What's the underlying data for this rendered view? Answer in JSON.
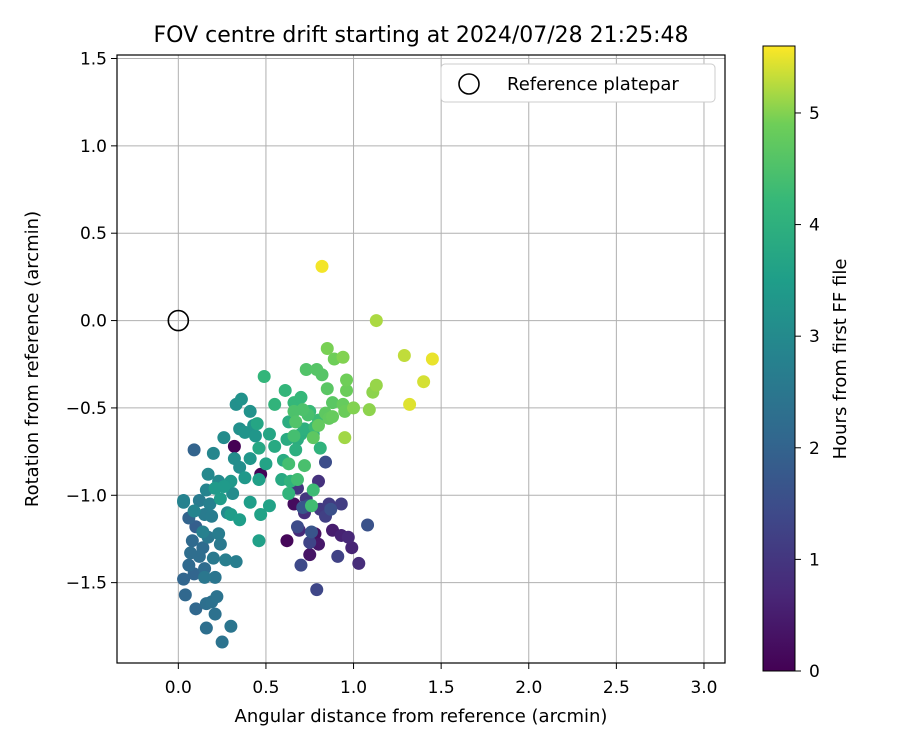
{
  "chart_data": {
    "type": "scatter",
    "title": "FOV centre drift starting at 2024/07/28 21:25:48",
    "xlabel": "Angular distance from reference (arcmin)",
    "ylabel": "Rotation from reference (arcmin)",
    "xlim": [
      -0.35,
      3.12
    ],
    "ylim": [
      -1.96,
      1.52
    ],
    "xticks": [
      0.0,
      0.5,
      1.0,
      1.5,
      2.0,
      2.5,
      3.0
    ],
    "xtick_labels": [
      "0.0",
      "0.5",
      "1.0",
      "1.5",
      "2.0",
      "2.5",
      "3.0"
    ],
    "yticks": [
      -1.5,
      -1.0,
      -0.5,
      0.0,
      0.5,
      1.0,
      1.5
    ],
    "ytick_labels": [
      "−1.5",
      "−1.0",
      "−0.5",
      "0.0",
      "0.5",
      "1.0",
      "1.5"
    ],
    "grid": true,
    "colormap": "viridis",
    "colorbar": {
      "label": "Hours from first FF file",
      "range": [
        0,
        5.6
      ],
      "ticks": [
        0,
        1,
        2,
        3,
        4,
        5
      ],
      "tick_labels": [
        "0",
        "1",
        "2",
        "3",
        "4",
        "5"
      ]
    },
    "legend": {
      "placement": "top-right",
      "entries": [
        {
          "label": "Reference platepar",
          "marker": "open-circle",
          "color": "#000000"
        }
      ]
    },
    "reference_point": {
      "name": "Reference platepar",
      "x": 0.0,
      "y": 0.0
    },
    "points": [
      {
        "x": 0.32,
        "y": -0.72,
        "c": 0.0
      },
      {
        "x": 0.47,
        "y": -0.88,
        "c": 0.05
      },
      {
        "x": 0.62,
        "y": -1.26,
        "c": 0.1
      },
      {
        "x": 0.66,
        "y": -1.05,
        "c": 0.2
      },
      {
        "x": 0.78,
        "y": -1.22,
        "c": 0.3
      },
      {
        "x": 0.75,
        "y": -1.34,
        "c": 0.35
      },
      {
        "x": 0.8,
        "y": -1.28,
        "c": 0.4
      },
      {
        "x": 0.88,
        "y": -1.2,
        "c": 0.5
      },
      {
        "x": 0.93,
        "y": -1.23,
        "c": 0.6
      },
      {
        "x": 0.99,
        "y": -1.3,
        "c": 0.65
      },
      {
        "x": 0.97,
        "y": -1.24,
        "c": 0.7
      },
      {
        "x": 1.03,
        "y": -1.39,
        "c": 0.8
      },
      {
        "x": 0.69,
        "y": -1.2,
        "c": 0.75
      },
      {
        "x": 0.72,
        "y": -1.1,
        "c": 0.85
      },
      {
        "x": 0.8,
        "y": -0.92,
        "c": 0.9
      },
      {
        "x": 0.68,
        "y": -0.96,
        "c": 0.95
      },
      {
        "x": 0.73,
        "y": -1.02,
        "c": 1.0
      },
      {
        "x": 0.81,
        "y": -1.08,
        "c": 1.05
      },
      {
        "x": 0.86,
        "y": -1.05,
        "c": 1.1
      },
      {
        "x": 0.93,
        "y": -1.05,
        "c": 1.15
      },
      {
        "x": 0.84,
        "y": -1.12,
        "c": 1.2
      },
      {
        "x": 0.91,
        "y": -1.35,
        "c": 1.25
      },
      {
        "x": 0.75,
        "y": -1.27,
        "c": 1.3
      },
      {
        "x": 0.79,
        "y": -1.54,
        "c": 1.35
      },
      {
        "x": 0.7,
        "y": -1.4,
        "c": 1.4
      },
      {
        "x": 0.68,
        "y": -1.18,
        "c": 1.45
      },
      {
        "x": 0.74,
        "y": -1.06,
        "c": 1.5
      },
      {
        "x": 0.84,
        "y": -0.81,
        "c": 1.5
      },
      {
        "x": 0.87,
        "y": -1.08,
        "c": 1.55
      },
      {
        "x": 1.08,
        "y": -1.17,
        "c": 1.6
      },
      {
        "x": 0.76,
        "y": -1.21,
        "c": 1.65
      },
      {
        "x": 0.71,
        "y": -1.07,
        "c": 1.7
      },
      {
        "x": 0.1,
        "y": -1.18,
        "c": 1.9
      },
      {
        "x": 0.09,
        "y": -0.74,
        "c": 2.0
      },
      {
        "x": 0.06,
        "y": -1.13,
        "c": 2.0
      },
      {
        "x": 0.09,
        "y": -1.45,
        "c": 2.05
      },
      {
        "x": 0.03,
        "y": -1.48,
        "c": 2.05
      },
      {
        "x": 0.04,
        "y": -1.57,
        "c": 2.1
      },
      {
        "x": 0.1,
        "y": -1.65,
        "c": 2.1
      },
      {
        "x": 0.06,
        "y": -1.4,
        "c": 2.15
      },
      {
        "x": 0.08,
        "y": -1.26,
        "c": 2.15
      },
      {
        "x": 0.14,
        "y": -1.3,
        "c": 2.2
      },
      {
        "x": 0.15,
        "y": -1.42,
        "c": 2.2
      },
      {
        "x": 0.12,
        "y": -1.35,
        "c": 2.25
      },
      {
        "x": 0.07,
        "y": -1.33,
        "c": 2.25
      },
      {
        "x": 0.16,
        "y": -1.62,
        "c": 2.3
      },
      {
        "x": 0.16,
        "y": -1.76,
        "c": 2.3
      },
      {
        "x": 0.19,
        "y": -1.61,
        "c": 2.35
      },
      {
        "x": 0.21,
        "y": -1.68,
        "c": 2.35
      },
      {
        "x": 0.22,
        "y": -1.58,
        "c": 2.4
      },
      {
        "x": 0.25,
        "y": -1.84,
        "c": 2.4
      },
      {
        "x": 0.3,
        "y": -1.75,
        "c": 2.45
      },
      {
        "x": 0.21,
        "y": -1.47,
        "c": 2.45
      },
      {
        "x": 0.15,
        "y": -1.47,
        "c": 2.5
      },
      {
        "x": 0.17,
        "y": -1.24,
        "c": 2.5
      },
      {
        "x": 0.2,
        "y": -1.36,
        "c": 2.55
      },
      {
        "x": 0.24,
        "y": -1.28,
        "c": 2.55
      },
      {
        "x": 0.12,
        "y": -1.03,
        "c": 2.6
      },
      {
        "x": 0.15,
        "y": -1.11,
        "c": 2.6
      },
      {
        "x": 0.19,
        "y": -1.12,
        "c": 2.65
      },
      {
        "x": 0.23,
        "y": -1.22,
        "c": 2.65
      },
      {
        "x": 0.27,
        "y": -1.37,
        "c": 2.7
      },
      {
        "x": 0.33,
        "y": -1.38,
        "c": 2.7
      },
      {
        "x": 0.18,
        "y": -1.05,
        "c": 2.75
      },
      {
        "x": 0.14,
        "y": -1.21,
        "c": 2.75
      },
      {
        "x": 0.03,
        "y": -1.04,
        "c": 2.8
      },
      {
        "x": 0.03,
        "y": -1.03,
        "c": 2.8
      },
      {
        "x": 0.09,
        "y": -1.09,
        "c": 2.85
      },
      {
        "x": 0.16,
        "y": -0.97,
        "c": 2.85
      },
      {
        "x": 0.2,
        "y": -0.76,
        "c": 2.9
      },
      {
        "x": 0.17,
        "y": -0.88,
        "c": 2.95
      },
      {
        "x": 0.23,
        "y": -0.92,
        "c": 3.0
      },
      {
        "x": 0.28,
        "y": -1.1,
        "c": 3.0
      },
      {
        "x": 0.31,
        "y": -0.99,
        "c": 3.05
      },
      {
        "x": 0.26,
        "y": -0.67,
        "c": 3.05
      },
      {
        "x": 0.32,
        "y": -0.79,
        "c": 3.1
      },
      {
        "x": 0.35,
        "y": -0.84,
        "c": 3.1
      },
      {
        "x": 0.35,
        "y": -0.62,
        "c": 3.15
      },
      {
        "x": 0.33,
        "y": -0.48,
        "c": 3.15
      },
      {
        "x": 0.36,
        "y": -0.45,
        "c": 3.2
      },
      {
        "x": 0.41,
        "y": -0.52,
        "c": 3.2
      },
      {
        "x": 0.38,
        "y": -0.64,
        "c": 3.25
      },
      {
        "x": 0.43,
        "y": -0.6,
        "c": 3.25
      },
      {
        "x": 0.44,
        "y": -0.66,
        "c": 3.3
      },
      {
        "x": 0.41,
        "y": -0.79,
        "c": 3.3
      },
      {
        "x": 0.38,
        "y": -0.9,
        "c": 3.35
      },
      {
        "x": 0.3,
        "y": -0.92,
        "c": 3.35
      },
      {
        "x": 0.26,
        "y": -0.95,
        "c": 3.4
      },
      {
        "x": 0.21,
        "y": -0.96,
        "c": 3.4
      },
      {
        "x": 0.24,
        "y": -1.02,
        "c": 3.45
      },
      {
        "x": 0.3,
        "y": -1.11,
        "c": 3.45
      },
      {
        "x": 0.35,
        "y": -1.14,
        "c": 3.5
      },
      {
        "x": 0.41,
        "y": -1.04,
        "c": 3.5
      },
      {
        "x": 0.46,
        "y": -1.26,
        "c": 3.55
      },
      {
        "x": 0.46,
        "y": -0.91,
        "c": 3.55
      },
      {
        "x": 0.47,
        "y": -1.11,
        "c": 3.6
      },
      {
        "x": 0.52,
        "y": -1.06,
        "c": 3.6
      },
      {
        "x": 0.5,
        "y": -0.82,
        "c": 3.65
      },
      {
        "x": 0.52,
        "y": -0.65,
        "c": 3.7
      },
      {
        "x": 0.45,
        "y": -0.59,
        "c": 3.7
      },
      {
        "x": 0.46,
        "y": -0.73,
        "c": 3.75
      },
      {
        "x": 0.55,
        "y": -0.72,
        "c": 3.8
      },
      {
        "x": 0.59,
        "y": -0.91,
        "c": 3.8
      },
      {
        "x": 0.6,
        "y": -0.8,
        "c": 3.85
      },
      {
        "x": 0.62,
        "y": -0.68,
        "c": 3.85
      },
      {
        "x": 0.63,
        "y": -0.58,
        "c": 3.9
      },
      {
        "x": 0.68,
        "y": -0.68,
        "c": 3.9
      },
      {
        "x": 0.7,
        "y": -0.65,
        "c": 3.95
      },
      {
        "x": 0.67,
        "y": -0.74,
        "c": 3.95
      },
      {
        "x": 0.72,
        "y": -0.62,
        "c": 4.0
      },
      {
        "x": 0.77,
        "y": -0.65,
        "c": 4.0
      },
      {
        "x": 0.81,
        "y": -0.73,
        "c": 4.05
      },
      {
        "x": 0.64,
        "y": -0.92,
        "c": 4.05
      },
      {
        "x": 0.63,
        "y": -0.99,
        "c": 4.1
      },
      {
        "x": 0.55,
        "y": -0.48,
        "c": 4.1
      },
      {
        "x": 0.61,
        "y": -0.4,
        "c": 4.15
      },
      {
        "x": 0.49,
        "y": -0.32,
        "c": 4.15
      },
      {
        "x": 0.66,
        "y": -0.47,
        "c": 4.2
      },
      {
        "x": 0.7,
        "y": -0.44,
        "c": 4.2
      },
      {
        "x": 0.75,
        "y": -0.52,
        "c": 4.25
      },
      {
        "x": 0.78,
        "y": -0.61,
        "c": 4.25
      },
      {
        "x": 0.8,
        "y": -0.57,
        "c": 4.3
      },
      {
        "x": 0.77,
        "y": -0.97,
        "c": 4.3
      },
      {
        "x": 0.76,
        "y": -1.06,
        "c": 4.35
      },
      {
        "x": 0.68,
        "y": -0.91,
        "c": 4.35
      },
      {
        "x": 0.63,
        "y": -0.82,
        "c": 4.4
      },
      {
        "x": 0.66,
        "y": -0.66,
        "c": 4.4
      },
      {
        "x": 0.72,
        "y": -0.83,
        "c": 4.45
      },
      {
        "x": 0.74,
        "y": -0.54,
        "c": 4.45
      },
      {
        "x": 0.71,
        "y": -0.51,
        "c": 4.5
      },
      {
        "x": 0.66,
        "y": -0.52,
        "c": 4.5
      },
      {
        "x": 0.67,
        "y": -0.58,
        "c": 4.55
      },
      {
        "x": 0.73,
        "y": -0.28,
        "c": 4.55
      },
      {
        "x": 0.79,
        "y": -0.28,
        "c": 4.6
      },
      {
        "x": 0.82,
        "y": -0.31,
        "c": 4.6
      },
      {
        "x": 0.85,
        "y": -0.39,
        "c": 4.65
      },
      {
        "x": 0.88,
        "y": -0.47,
        "c": 4.65
      },
      {
        "x": 0.84,
        "y": -0.53,
        "c": 4.7
      },
      {
        "x": 0.77,
        "y": -0.67,
        "c": 4.7
      },
      {
        "x": 0.8,
        "y": -0.6,
        "c": 4.75
      },
      {
        "x": 0.86,
        "y": -0.56,
        "c": 4.75
      },
      {
        "x": 0.88,
        "y": -0.55,
        "c": 4.8
      },
      {
        "x": 0.94,
        "y": -0.48,
        "c": 4.8
      },
      {
        "x": 0.95,
        "y": -0.52,
        "c": 4.85
      },
      {
        "x": 0.96,
        "y": -0.4,
        "c": 4.85
      },
      {
        "x": 0.96,
        "y": -0.34,
        "c": 4.9
      },
      {
        "x": 0.89,
        "y": -0.22,
        "c": 4.9
      },
      {
        "x": 0.85,
        "y": -0.16,
        "c": 4.95
      },
      {
        "x": 0.94,
        "y": -0.21,
        "c": 5.0
      },
      {
        "x": 1.0,
        "y": -0.5,
        "c": 5.0
      },
      {
        "x": 1.09,
        "y": -0.51,
        "c": 5.05
      },
      {
        "x": 1.11,
        "y": -0.41,
        "c": 5.05
      },
      {
        "x": 1.13,
        "y": -0.37,
        "c": 5.1
      },
      {
        "x": 0.95,
        "y": -0.67,
        "c": 5.15
      },
      {
        "x": 1.13,
        "y": 0.0,
        "c": 5.2
      },
      {
        "x": 1.29,
        "y": -0.2,
        "c": 5.3
      },
      {
        "x": 1.4,
        "y": -0.35,
        "c": 5.4
      },
      {
        "x": 1.32,
        "y": -0.48,
        "c": 5.45
      },
      {
        "x": 1.45,
        "y": -0.22,
        "c": 5.5
      },
      {
        "x": 0.82,
        "y": 0.31,
        "c": 5.55
      }
    ]
  }
}
